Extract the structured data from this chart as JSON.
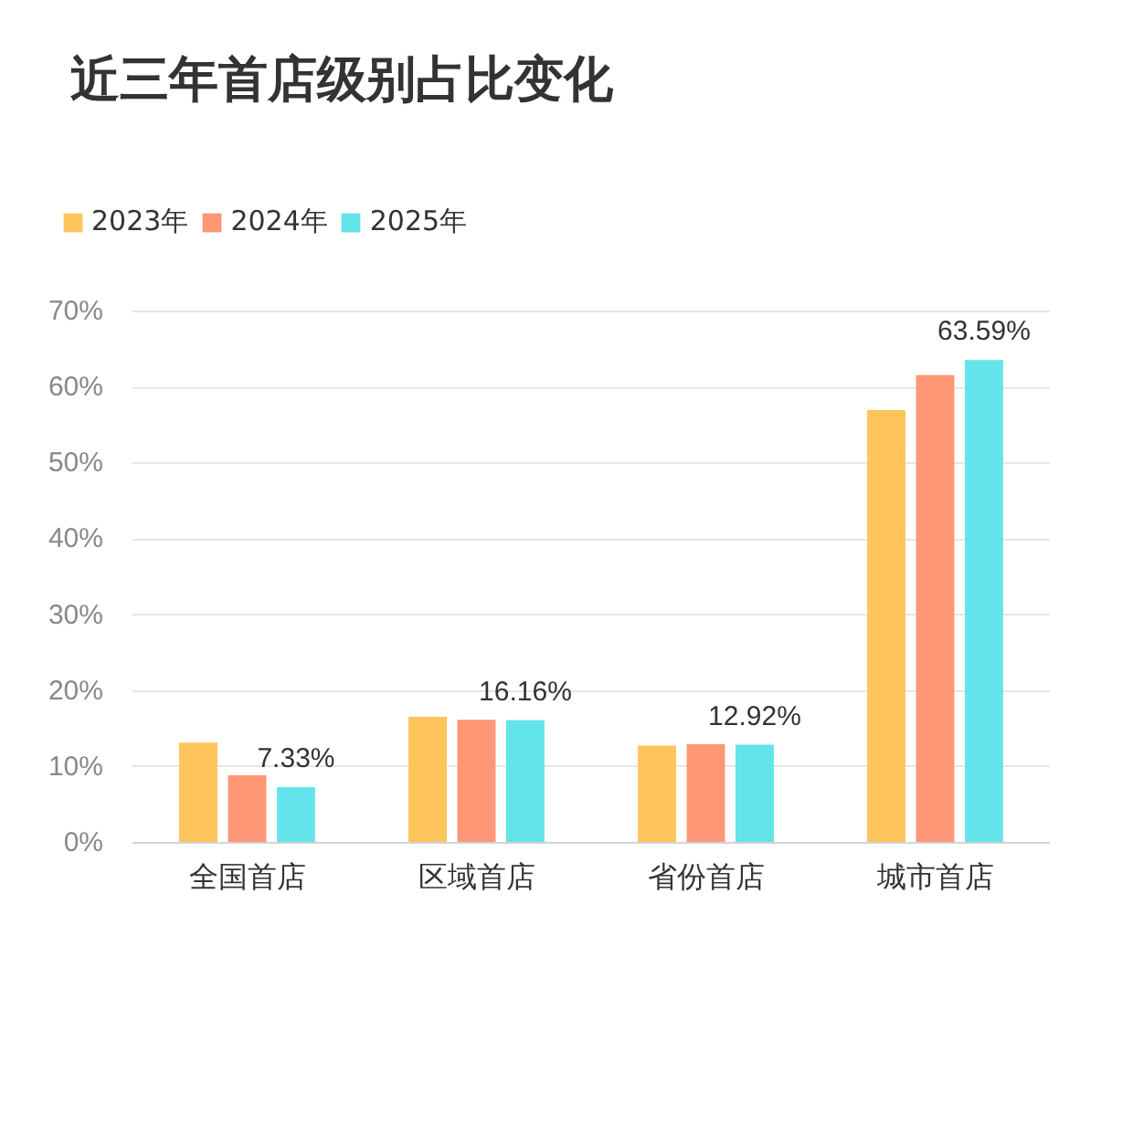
{
  "chart_data": {
    "type": "bar",
    "title": "近三年首店级别占比变化",
    "categories": [
      "全国首店",
      "区域首店",
      "省份首店",
      "城市首店"
    ],
    "series": [
      {
        "name": "2023年",
        "color": "#fec55c",
        "values": [
          13.2,
          16.6,
          12.8,
          57.0
        ]
      },
      {
        "name": "2024年",
        "color": "#fe9775",
        "values": [
          8.9,
          16.2,
          13.0,
          61.6
        ]
      },
      {
        "name": "2025年",
        "color": "#62e4ea",
        "values": [
          7.33,
          16.16,
          12.92,
          63.59
        ],
        "value_labels": [
          "7.33%",
          "16.16%",
          "12.92%",
          "63.59%"
        ]
      }
    ],
    "ylim": [
      0,
      70
    ],
    "yticks": [
      {
        "value": 0,
        "label": "0%"
      },
      {
        "value": 10,
        "label": "10%"
      },
      {
        "value": 20,
        "label": "20%"
      },
      {
        "value": 30,
        "label": "30%"
      },
      {
        "value": 40,
        "label": "40%"
      },
      {
        "value": 50,
        "label": "50%"
      },
      {
        "value": 60,
        "label": "60%"
      },
      {
        "value": 70,
        "label": "70%"
      }
    ],
    "grid": "y",
    "legend": "top left"
  }
}
